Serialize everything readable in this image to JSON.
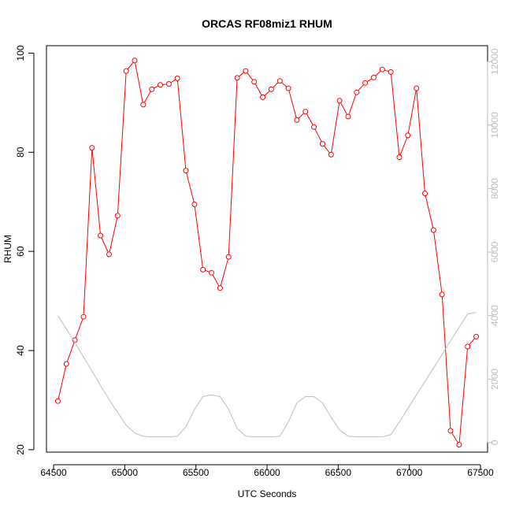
{
  "chart_data": {
    "type": "line",
    "title": "ORCAS RF08miz1 RHUM",
    "xlabel": "UTC Seconds",
    "ylabel": "RHUM",
    "xlim": [
      64450,
      67550
    ],
    "ylim": [
      19.5,
      101.5
    ],
    "x_ticks": [
      64500,
      65000,
      65500,
      66000,
      66500,
      67000,
      67500
    ],
    "y_ticks": [
      20,
      40,
      60,
      80,
      100
    ],
    "y2_lim": [
      -300,
      12500
    ],
    "y2_ticks": [
      0,
      2000,
      4000,
      6000,
      8000,
      10000,
      12000
    ],
    "grid": false,
    "colors": {
      "primary": "#ff0000",
      "secondary": "#bebebe",
      "axis": "#000000"
    },
    "series": [
      {
        "axis": "left",
        "style": "line+points",
        "color": "#ff0000",
        "x": [
          64530,
          64590,
          64650,
          64710,
          64770,
          64830,
          64890,
          64950,
          65010,
          65070,
          65130,
          65190,
          65250,
          65310,
          65370,
          65430,
          65490,
          65550,
          65610,
          65670,
          65730,
          65790,
          65850,
          65910,
          65970,
          66030,
          66090,
          66150,
          66210,
          66270,
          66330,
          66390,
          66450,
          66510,
          66570,
          66630,
          66690,
          66750,
          66810,
          66870,
          66930,
          66990,
          67050,
          67110,
          67170,
          67230,
          67290,
          67350,
          67410,
          67470
        ],
        "y": [
          29.8,
          37.3,
          42.1,
          46.8,
          80.9,
          63.2,
          59.4,
          67.2,
          96.4,
          98.5,
          89.6,
          92.7,
          93.6,
          93.8,
          94.9,
          76.3,
          69.5,
          56.3,
          55.7,
          52.6,
          58.9,
          95.0,
          96.4,
          94.2,
          91.1,
          92.7,
          94.4,
          92.9,
          86.5,
          88.2,
          85.1,
          81.7,
          79.5,
          90.4,
          87.2,
          92.1,
          94.0,
          95.1,
          96.7,
          96.2,
          79.0,
          83.4,
          92.9,
          71.7,
          64.3,
          51.3,
          23.8,
          21.0,
          40.8,
          42.8
        ]
      },
      {
        "axis": "right",
        "style": "line",
        "color": "#bebebe",
        "x": [
          64530,
          64650,
          64770,
          64890,
          65010,
          65070,
          65130,
          65190,
          65250,
          65310,
          65370,
          65430,
          65490,
          65550,
          65610,
          65670,
          65730,
          65790,
          65850,
          65910,
          65970,
          66030,
          66090,
          66150,
          66210,
          66270,
          66330,
          66390,
          66450,
          66510,
          66570,
          66630,
          66690,
          66750,
          66810,
          66870,
          66930,
          67050,
          67170,
          67290,
          67410,
          67470
        ],
        "y": [
          4000,
          3150,
          2250,
          1350,
          550,
          300,
          200,
          180,
          180,
          180,
          200,
          500,
          1050,
          1450,
          1500,
          1450,
          1050,
          450,
          200,
          180,
          180,
          180,
          200,
          650,
          1250,
          1450,
          1450,
          1250,
          800,
          400,
          200,
          180,
          180,
          180,
          180,
          250,
          650,
          1500,
          2350,
          3200,
          4050,
          4100
        ]
      }
    ]
  }
}
